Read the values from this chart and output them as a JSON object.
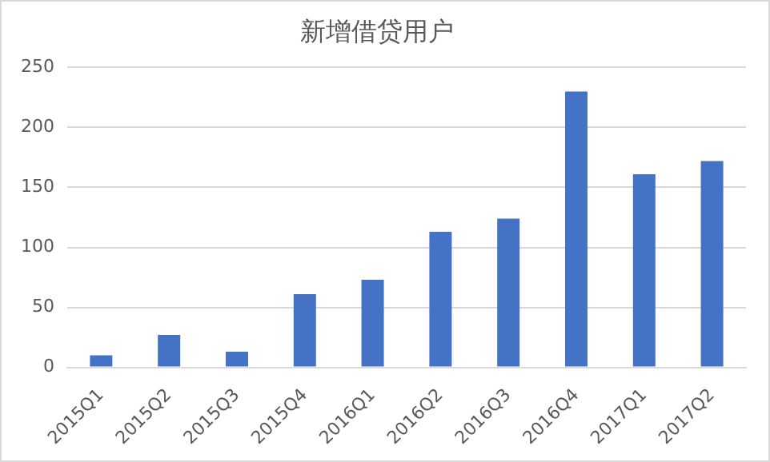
{
  "chart_data": {
    "type": "bar",
    "title": "新增借贷用户",
    "categories": [
      "2015Q1",
      "2015Q2",
      "2015Q3",
      "2015Q4",
      "2016Q1",
      "2016Q2",
      "2016Q3",
      "2016Q4",
      "2017Q1",
      "2017Q2"
    ],
    "values": [
      10,
      27,
      13,
      61,
      73,
      113,
      124,
      230,
      161,
      172
    ],
    "color": "#4472c4",
    "ylim": [
      0,
      250
    ],
    "yticks": [
      0,
      50,
      100,
      150,
      200,
      250
    ],
    "grid": "y",
    "legend": false
  }
}
